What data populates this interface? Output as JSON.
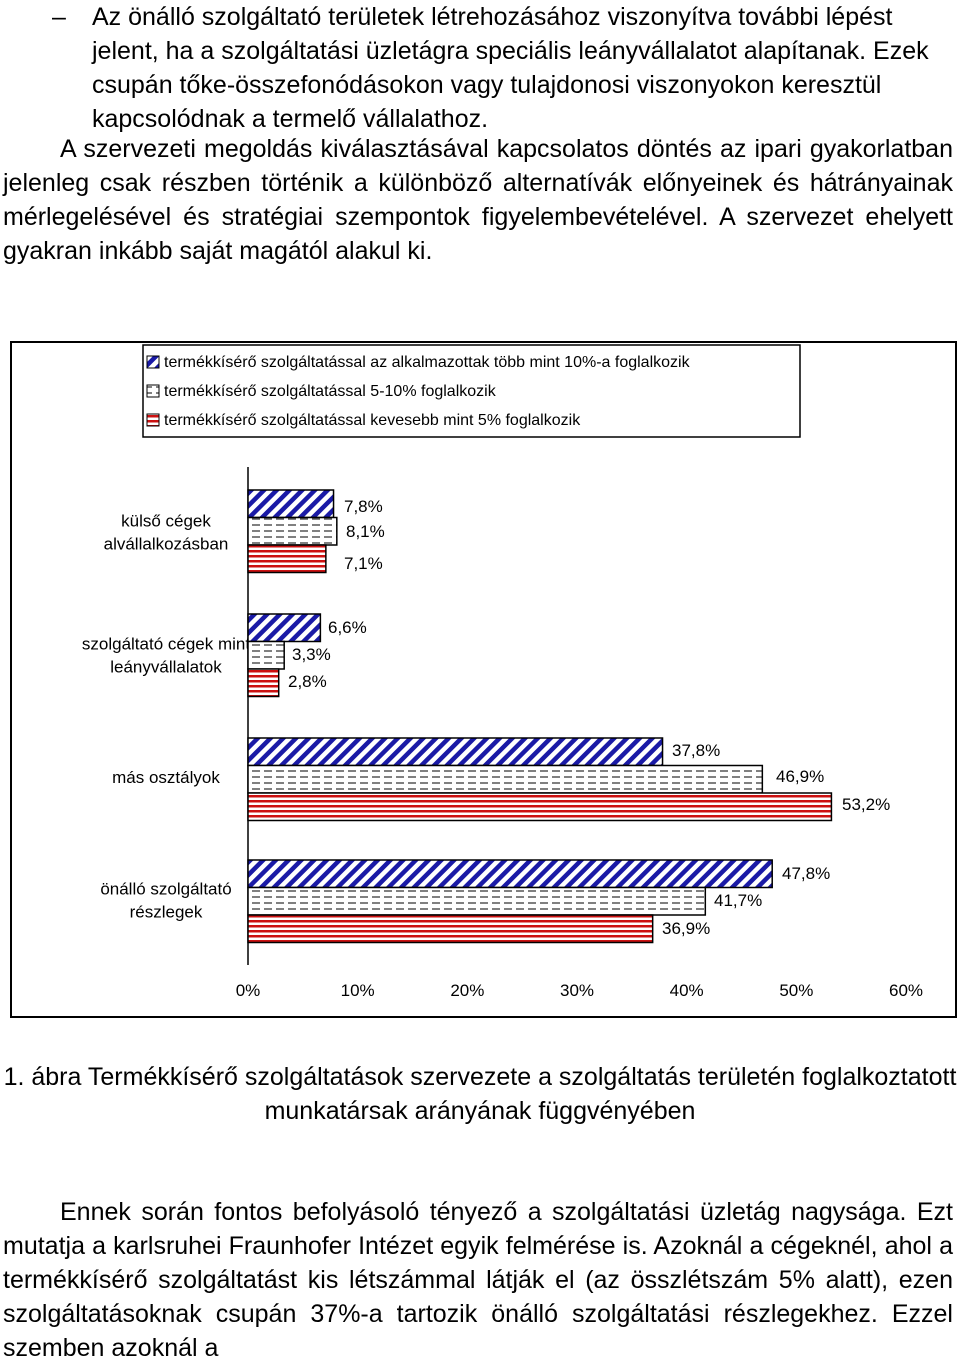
{
  "bullet": {
    "marker": "–",
    "text": "Az önálló szolgáltató területek létrehozásához viszonyítva további lépést jelent, ha a szolgáltatási üzletágra speciális leányvállalatot alapítanak. Ezek csupán tőke-összefonódásokon vagy tulajdonosi viszonyokon keresztül kapcsolódnak a termelő vállalathoz."
  },
  "paragraph1": "A szervezeti megoldás kiválasztásával kapcsolatos döntés az ipari gyakorlatban jelenleg csak részben történik a különböző alternatívák előnyeinek és hátrányainak mérlegelésével és stratégiai szempontok figyelembevételével. A szervezet ehelyett gyakran inkább saját magától alakul ki.",
  "chart_data": {
    "type": "bar",
    "orientation": "horizontal",
    "categories": [
      [
        "külső cégek",
        "alvállalkozásban"
      ],
      [
        "szolgáltató cégek mint",
        "leányvállalatok"
      ],
      [
        "más osztályok"
      ],
      [
        "önálló szolgáltató",
        "részlegek"
      ]
    ],
    "series": [
      {
        "name": "termékkísérő szolgáltatással az alkalmazottak több mint 10%-a foglalkozik",
        "values": [
          7.8,
          6.6,
          37.8,
          47.8
        ],
        "labels": [
          "7,8%",
          "6,6%",
          "37,8%",
          "47,8%"
        ],
        "color": "#1a1aa6",
        "pattern": "diagonal"
      },
      {
        "name": "termékkísérő szolgáltatással 5-10% foglalkozik",
        "values": [
          8.1,
          3.3,
          46.9,
          41.7
        ],
        "labels": [
          "8,1%",
          "3,3%",
          "46,9%",
          "41,7%"
        ],
        "color": "#000000",
        "pattern": "dashed"
      },
      {
        "name": "termékkísérő szolgáltatással kevesebb mint 5% foglalkozik",
        "values": [
          7.1,
          2.8,
          53.2,
          36.9
        ],
        "labels": [
          "7,1%",
          "2,8%",
          "53,2%",
          "36,9%"
        ],
        "color": "#cc1111",
        "pattern": "horizontal"
      }
    ],
    "xlim": [
      0,
      60
    ],
    "xticks": [
      "0%",
      "10%",
      "20%",
      "30%",
      "40%",
      "50%",
      "60%"
    ],
    "grid": false,
    "legend_position": "top"
  },
  "caption": "1. ábra Termékkísérő szolgáltatások szervezete a szolgáltatás területén foglalkoztatott munkatársak arányának függvényében",
  "paragraph2": "Ennek során fontos befolyásoló tényező a szolgáltatási üzletág nagysága. Ezt mutatja a karlsruhei Fraunhofer Intézet egyik felmérése is. Azoknál a cégeknél, ahol a termékkísérő szolgáltatást kis létszámmal látják el (az összlétszám 5% alatt), ezen szolgáltatásoknak csupán 37%-a tartozik önálló szolgáltatási részlegekhez. Ezzel szemben azoknál a"
}
